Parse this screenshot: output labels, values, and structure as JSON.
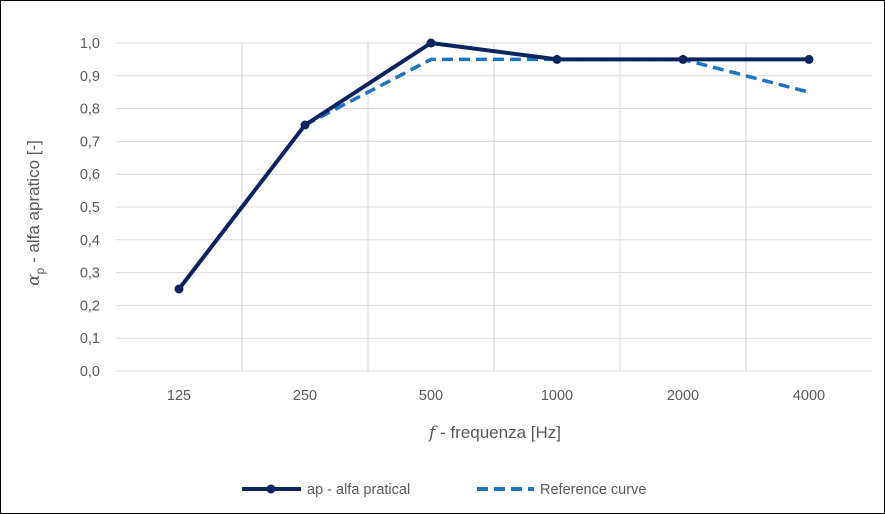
{
  "chart_data": {
    "type": "line",
    "categories": [
      "125",
      "250",
      "500",
      "1000",
      "2000",
      "4000"
    ],
    "series": [
      {
        "name": "ap - alfa pratical",
        "values": [
          0.25,
          0.75,
          1.0,
          0.95,
          0.95,
          0.95
        ],
        "color": "#0B2460",
        "style": "solid",
        "markers": true
      },
      {
        "name": "Reference curve",
        "values": [
          null,
          0.75,
          0.95,
          0.95,
          0.95,
          0.85
        ],
        "color": "#1F74C0",
        "style": "dashed",
        "markers": false
      }
    ],
    "xlabel": {
      "italic_part": "f",
      "text": " - frequenza [Hz]"
    },
    "ylabel": {
      "symbol": "α",
      "subscript": "p",
      "text": " - alfa apratico [-]"
    },
    "ylim": [
      0,
      1.0
    ],
    "yticks": [
      "0,0",
      "0,1",
      "0,2",
      "0,3",
      "0,4",
      "0,5",
      "0,6",
      "0,7",
      "0,8",
      "0,9",
      "1,0"
    ],
    "grid": true,
    "legend_position": "bottom"
  }
}
